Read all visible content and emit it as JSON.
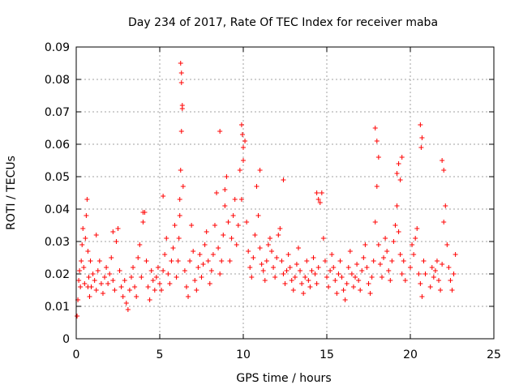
{
  "chart_data": {
    "type": "scatter",
    "title": "Day 234 of 2017, Rate Of TEC Index for receiver maba",
    "xlabel": "GPS time / hours",
    "ylabel": "ROTI / TECUs",
    "xlim": [
      0,
      25
    ],
    "ylim": [
      0,
      0.09
    ],
    "xticks": [
      "0",
      "5",
      "10",
      "15",
      "20",
      "25"
    ],
    "xtick_values": [
      0,
      5,
      10,
      15,
      20,
      25
    ],
    "yticks": [
      "0",
      "0.01",
      "0.02",
      "0.03",
      "0.04",
      "0.05",
      "0.06",
      "0.07",
      "0.08",
      "0.09"
    ],
    "ytick_values": [
      0,
      0.01,
      0.02,
      0.03,
      0.04,
      0.05,
      0.06,
      0.07,
      0.08,
      0.09
    ],
    "grid": true,
    "marker": "plus",
    "series": [
      {
        "color": "#ff0000",
        "x": [
          0.05,
          0.1,
          0.15,
          0.2,
          0.25,
          0.3,
          0.35,
          0.4,
          0.45,
          0.5,
          0.55,
          0.6,
          0.65,
          0.7,
          0.75,
          0.8,
          0.85,
          0.9,
          1.0,
          1.1,
          1.2,
          1.3,
          1.4,
          1.5,
          1.6,
          1.7,
          1.8,
          1.9,
          2.0,
          2.1,
          2.2,
          2.3,
          2.4,
          2.5,
          2.6,
          2.7,
          2.8,
          2.9,
          3.0,
          3.1,
          3.2,
          3.3,
          3.4,
          3.5,
          3.6,
          3.7,
          3.8,
          3.9,
          4.0,
          4.1,
          4.2,
          4.3,
          4.4,
          4.5,
          4.6,
          4.7,
          4.8,
          4.9,
          5.0,
          5.1,
          5.2,
          5.3,
          5.4,
          5.5,
          5.6,
          5.7,
          5.8,
          5.9,
          6.0,
          6.1,
          6.15,
          6.2,
          6.25,
          6.3,
          6.35,
          6.4,
          6.5,
          6.6,
          6.7,
          6.8,
          6.9,
          7.0,
          7.1,
          7.2,
          7.3,
          7.4,
          7.5,
          7.6,
          7.7,
          7.8,
          7.9,
          8.0,
          8.1,
          8.2,
          8.3,
          8.4,
          8.5,
          8.6,
          8.7,
          8.8,
          8.9,
          9.0,
          9.1,
          9.2,
          9.3,
          9.4,
          9.5,
          9.6,
          9.7,
          9.8,
          9.9,
          10.0,
          10.1,
          10.2,
          10.3,
          10.4,
          10.5,
          10.6,
          10.7,
          10.8,
          10.9,
          11.0,
          11.1,
          11.2,
          11.3,
          11.4,
          11.5,
          11.6,
          11.7,
          11.8,
          11.9,
          12.0,
          12.1,
          12.2,
          12.3,
          12.4,
          12.5,
          12.6,
          12.7,
          12.8,
          12.9,
          13.0,
          13.1,
          13.2,
          13.3,
          13.4,
          13.5,
          13.6,
          13.7,
          13.8,
          13.9,
          14.0,
          14.1,
          14.2,
          14.3,
          14.4,
          14.5,
          14.6,
          14.7,
          14.8,
          14.9,
          15.0,
          15.1,
          15.2,
          15.3,
          15.4,
          15.5,
          15.6,
          15.7,
          15.8,
          15.9,
          16.0,
          16.1,
          16.2,
          16.3,
          16.4,
          16.5,
          16.6,
          16.7,
          16.8,
          16.9,
          17.0,
          17.1,
          17.2,
          17.3,
          17.4,
          17.5,
          17.6,
          17.7,
          17.8,
          17.9,
          18.0,
          18.1,
          18.2,
          18.3,
          18.4,
          18.5,
          18.6,
          18.7,
          18.8,
          18.9,
          19.0,
          19.1,
          19.2,
          19.3,
          19.4,
          19.5,
          19.6,
          19.7,
          20.0,
          20.1,
          20.2,
          20.3,
          20.4,
          20.5,
          20.6,
          20.7,
          20.8,
          20.9,
          21.2,
          21.3,
          21.4,
          21.5,
          21.6,
          21.7,
          21.8,
          21.9,
          22.0,
          22.1,
          22.2,
          22.3,
          22.4,
          22.5,
          22.6,
          22.7,
          0.7,
          6.2,
          6.25,
          6.3,
          6.3,
          6.35,
          9.9,
          9.95,
          10.0,
          8.6,
          17.9,
          18.0,
          18.1,
          20.6,
          20.7,
          20.65,
          21.9,
          22.0,
          14.4,
          14.5,
          19.2,
          19.3,
          19.4,
          19.5,
          5.2,
          4.0,
          2.2,
          1.2,
          8.9,
          11.0,
          12.4
        ],
        "y": [
          0.007,
          0.012,
          0.018,
          0.021,
          0.016,
          0.024,
          0.029,
          0.034,
          0.022,
          0.017,
          0.031,
          0.038,
          0.043,
          0.027,
          0.019,
          0.013,
          0.024,
          0.016,
          0.02,
          0.018,
          0.015,
          0.021,
          0.024,
          0.017,
          0.014,
          0.019,
          0.022,
          0.017,
          0.02,
          0.025,
          0.018,
          0.015,
          0.03,
          0.034,
          0.021,
          0.016,
          0.013,
          0.018,
          0.011,
          0.009,
          0.015,
          0.019,
          0.022,
          0.016,
          0.013,
          0.025,
          0.029,
          0.019,
          0.036,
          0.039,
          0.024,
          0.016,
          0.012,
          0.021,
          0.018,
          0.015,
          0.019,
          0.022,
          0.017,
          0.015,
          0.021,
          0.026,
          0.031,
          0.02,
          0.017,
          0.024,
          0.028,
          0.035,
          0.019,
          0.024,
          0.031,
          0.038,
          0.052,
          0.064,
          0.071,
          0.047,
          0.021,
          0.016,
          0.013,
          0.024,
          0.035,
          0.027,
          0.018,
          0.015,
          0.022,
          0.026,
          0.019,
          0.023,
          0.029,
          0.033,
          0.024,
          0.017,
          0.021,
          0.026,
          0.035,
          0.045,
          0.028,
          0.02,
          0.024,
          0.032,
          0.041,
          0.05,
          0.036,
          0.024,
          0.031,
          0.038,
          0.043,
          0.029,
          0.035,
          0.052,
          0.043,
          0.055,
          0.061,
          0.036,
          0.027,
          0.022,
          0.019,
          0.025,
          0.032,
          0.047,
          0.038,
          0.028,
          0.023,
          0.021,
          0.018,
          0.024,
          0.029,
          0.031,
          0.027,
          0.022,
          0.019,
          0.025,
          0.032,
          0.034,
          0.024,
          0.02,
          0.017,
          0.021,
          0.026,
          0.022,
          0.018,
          0.015,
          0.019,
          0.023,
          0.028,
          0.021,
          0.017,
          0.014,
          0.019,
          0.024,
          0.018,
          0.016,
          0.021,
          0.025,
          0.02,
          0.017,
          0.022,
          0.042,
          0.045,
          0.031,
          0.024,
          0.019,
          0.016,
          0.021,
          0.026,
          0.022,
          0.018,
          0.014,
          0.02,
          0.024,
          0.019,
          0.015,
          0.012,
          0.017,
          0.022,
          0.027,
          0.02,
          0.016,
          0.019,
          0.023,
          0.018,
          0.015,
          0.021,
          0.025,
          0.029,
          0.022,
          0.017,
          0.014,
          0.019,
          0.024,
          0.036,
          0.047,
          0.029,
          0.023,
          0.019,
          0.025,
          0.031,
          0.027,
          0.021,
          0.018,
          0.024,
          0.03,
          0.035,
          0.041,
          0.033,
          0.026,
          0.02,
          0.024,
          0.018,
          0.022,
          0.029,
          0.026,
          0.031,
          0.034,
          0.02,
          0.017,
          0.013,
          0.024,
          0.02,
          0.016,
          0.022,
          0.019,
          0.021,
          0.024,
          0.018,
          0.015,
          0.023,
          0.036,
          0.041,
          0.029,
          0.022,
          0.018,
          0.015,
          0.02,
          0.026,
          0.016,
          0.043,
          0.085,
          0.082,
          0.079,
          0.072,
          0.066,
          0.063,
          0.059,
          0.064,
          0.065,
          0.061,
          0.056,
          0.066,
          0.062,
          0.059,
          0.055,
          0.052,
          0.045,
          0.043,
          0.051,
          0.054,
          0.049,
          0.056,
          0.044,
          0.039,
          0.033,
          0.032,
          0.046,
          0.052,
          0.049
        ]
      }
    ]
  }
}
